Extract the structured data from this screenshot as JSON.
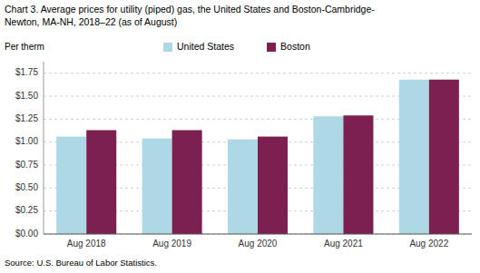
{
  "chart_data": {
    "type": "bar",
    "title": "Chart 3. Average prices for utility (piped) gas, the United States and Boston-Cambridge-",
    "subtitle": "Newton, MA-NH, 2018–22 (as of August)",
    "y_label": "Per therm",
    "annotations": [
      "Source: U.S. Bureau of Labor Statistics."
    ],
    "categories": [
      "Aug 2018",
      "Aug 2019",
      "Aug 2020",
      "Aug 2021",
      "Aug 2022"
    ],
    "series": [
      {
        "name": "United States",
        "color": "#add8e6",
        "values": [
          1.06,
          1.04,
          1.03,
          1.28,
          1.68
        ]
      },
      {
        "name": "Boston",
        "color": "#7b2050",
        "values": [
          1.13,
          1.13,
          1.06,
          1.29,
          1.68
        ]
      }
    ],
    "ylim": [
      0,
      1.875
    ],
    "yticks": [
      {
        "value": 0.0,
        "label": "$0.00"
      },
      {
        "value": 0.25,
        "label": "$0.25"
      },
      {
        "value": 0.5,
        "label": "$0.50"
      },
      {
        "value": 0.75,
        "label": "$0.75"
      },
      {
        "value": 1.0,
        "label": "$1.00"
      },
      {
        "value": 1.25,
        "label": "$1.25"
      },
      {
        "value": 1.5,
        "label": "$1.50"
      },
      {
        "value": 1.75,
        "label": "$1.75"
      }
    ],
    "grid": true,
    "legend": "top"
  }
}
